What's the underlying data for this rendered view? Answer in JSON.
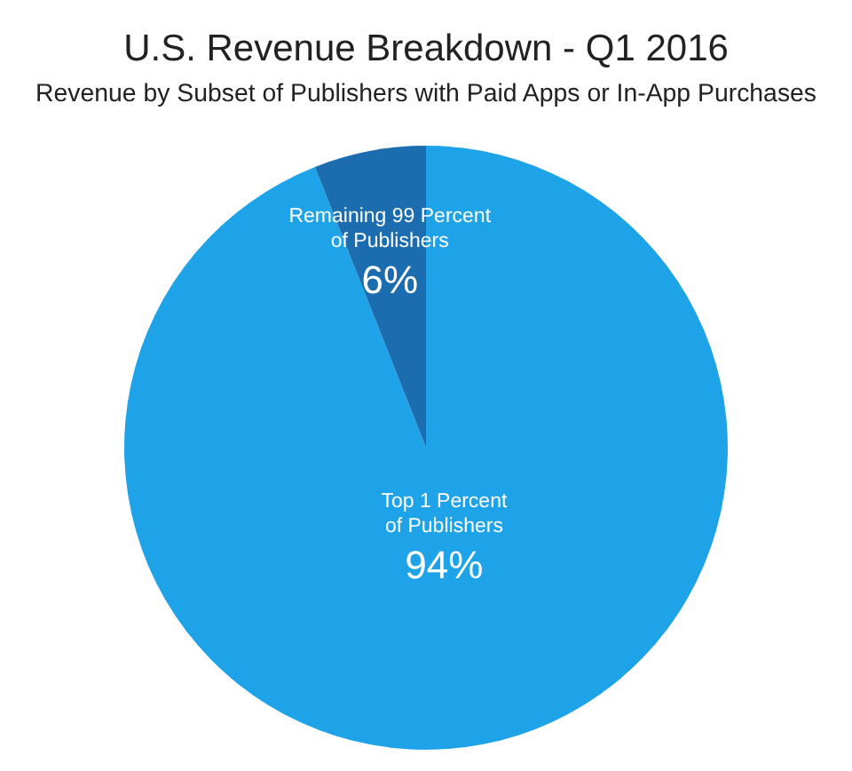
{
  "chart_data": {
    "type": "pie",
    "title": "U.S. Revenue Breakdown - Q1 2016",
    "subtitle": "Revenue by Subset of Publishers with Paid Apps or In-App Purchases",
    "categories": [
      "Top 1 Percent of Publishers",
      "Remaining 99 Percent of Publishers"
    ],
    "values": [
      94,
      6
    ],
    "value_labels": [
      "94%",
      "6%"
    ],
    "colors": [
      "#1fa3e8",
      "#1b6db0"
    ]
  }
}
